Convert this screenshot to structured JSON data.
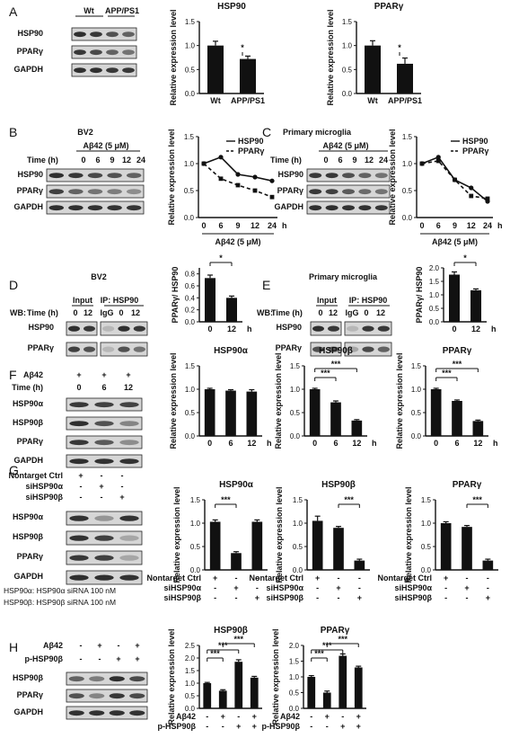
{
  "panels": {
    "A": {
      "letter": "A",
      "blot": {
        "groups": [
          "Wt",
          "APP/PS1"
        ],
        "rows": [
          "HSP90",
          "PPARγ",
          "GAPDH"
        ]
      },
      "charts": [
        {
          "title": "HSP90",
          "ylabel": "Relative expression level",
          "categories": [
            "Wt",
            "APP/PS1"
          ],
          "values": [
            1.0,
            0.72
          ],
          "errors": [
            0.09,
            0.06
          ],
          "yticks": [
            "0.0",
            "0.5",
            "1.0",
            "1.5"
          ],
          "ymax": 1.5,
          "sig": "*"
        },
        {
          "title": "PPARγ",
          "ylabel": "Relative expression level",
          "categories": [
            "Wt",
            "APP/PS1"
          ],
          "values": [
            1.0,
            0.62
          ],
          "errors": [
            0.1,
            0.12
          ],
          "yticks": [
            "0.0",
            "0.5",
            "1.0",
            "1.5"
          ],
          "ymax": 1.5,
          "sig": "*"
        }
      ]
    },
    "B": {
      "letter": "B",
      "cell": "BV2",
      "treatment": "Aβ42 (5 μM)",
      "time_label": "Time (h)",
      "times": [
        "0",
        "6",
        "9",
        "12",
        "24"
      ],
      "rows": [
        "HSP90",
        "PPARγ",
        "GAPDH"
      ],
      "chart": {
        "ylabel": "Relative expression level",
        "xlabel": "Aβ42 (5 μM)",
        "unit": "h",
        "x": [
          "0",
          "6",
          "9",
          "12",
          "24"
        ],
        "yticks": [
          "0.0",
          "0.5",
          "1.0",
          "1.5"
        ],
        "ymax": 1.5,
        "series": [
          {
            "name": "HSP90",
            "values": [
              1.0,
              1.12,
              0.8,
              0.75,
              0.68
            ]
          },
          {
            "name": "PPARγ",
            "values": [
              1.0,
              0.72,
              0.6,
              0.5,
              0.38
            ]
          }
        ]
      }
    },
    "C": {
      "letter": "C",
      "cell": "Primary microglia",
      "treatment": "Aβ42 (5 μM)",
      "time_label": "Time (h)",
      "times": [
        "0",
        "6",
        "9",
        "12",
        "24"
      ],
      "rows": [
        "HSP90",
        "PPARγ",
        "GAPDH"
      ],
      "chart": {
        "ylabel": "Relative expression level",
        "xlabel": "Aβ42 (5 μM)",
        "unit": "h",
        "x": [
          "0",
          "6",
          "9",
          "12",
          "24"
        ],
        "yticks": [
          "0.0",
          "0.5",
          "1.0",
          "1.5"
        ],
        "ymax": 1.5,
        "series": [
          {
            "name": "HSP90",
            "values": [
              1.0,
              1.12,
              0.7,
              0.55,
              0.3
            ]
          },
          {
            "name": "PPARγ",
            "values": [
              1.0,
              1.05,
              0.7,
              0.4,
              0.35
            ]
          }
        ]
      }
    },
    "D": {
      "letter": "D",
      "cell": "BV2",
      "wb": "WB:",
      "time_label": "Time (h)",
      "input": "Input",
      "ip": "IP: HSP90",
      "lanes": [
        "0",
        "12",
        "IgG",
        "0",
        "12"
      ],
      "rows": [
        "HSP90",
        "PPARγ"
      ],
      "chart": {
        "ylabel": "PPARγ/ HSP90",
        "categories": [
          "0",
          "12"
        ],
        "unit": "h",
        "values": [
          0.73,
          0.4
        ],
        "errors": [
          0.05,
          0.03
        ],
        "yticks": [
          "0.0",
          "0.2",
          "0.4",
          "0.6",
          "0.8"
        ],
        "ymax": 0.9,
        "sig": "*"
      }
    },
    "E": {
      "letter": "E",
      "cell": "Primary microglia",
      "wb": "WB:",
      "time_label": "Time (h)",
      "input": "Input",
      "ip": "IP: HSP90",
      "lanes": [
        "0",
        "12",
        "IgG",
        "0",
        "12"
      ],
      "rows": [
        "HSP90",
        "PPARγ"
      ],
      "chart": {
        "ylabel": "PPARγ/ HSP90",
        "categories": [
          "0",
          "12"
        ],
        "unit": "h",
        "values": [
          1.75,
          1.17
        ],
        "errors": [
          0.1,
          0.05
        ],
        "yticks": [
          "0.0",
          "0.5",
          "1.0",
          "1.5",
          "2.0"
        ],
        "ymax": 2.0,
        "sig": "*"
      }
    },
    "F": {
      "letter": "F",
      "treatment": "Aβ42",
      "time_label": "Time (h)",
      "plus": [
        "+",
        "+",
        "+"
      ],
      "times": [
        "0",
        "6",
        "12"
      ],
      "rows": [
        "HSP90α",
        "HSP90β",
        "PPARγ",
        "GAPDH"
      ],
      "charts": [
        {
          "title": "HSP90α",
          "ylabel": "Relative expression level",
          "categories": [
            "0",
            "6",
            "12"
          ],
          "unit": "h",
          "values": [
            1.0,
            0.97,
            0.95
          ],
          "errors": [
            0.02,
            0.02,
            0.04
          ],
          "yticks": [
            "0.0",
            "0.5",
            "1.0",
            "1.5"
          ],
          "ymax": 1.5,
          "sig": []
        },
        {
          "title": "HSP90β",
          "ylabel": "Relative expression level",
          "categories": [
            "0",
            "6",
            "12"
          ],
          "unit": "h",
          "values": [
            1.0,
            0.72,
            0.33
          ],
          "errors": [
            0.02,
            0.03,
            0.02
          ],
          "yticks": [
            "0.0",
            "0.5",
            "1.0",
            "1.5"
          ],
          "ymax": 1.5,
          "sig": [
            "***",
            "***"
          ]
        },
        {
          "title": "PPARγ",
          "ylabel": "Relative expression level",
          "categories": [
            "0",
            "6",
            "12"
          ],
          "unit": "h",
          "values": [
            1.0,
            0.75,
            0.32
          ],
          "errors": [
            0.02,
            0.02,
            0.02
          ],
          "yticks": [
            "0.0",
            "0.5",
            "1.0",
            "1.5"
          ],
          "ymax": 1.5,
          "sig": [
            "***",
            "***"
          ]
        }
      ]
    },
    "G": {
      "letter": "G",
      "conditions": [
        "Nontarget Ctrl",
        "siHSP90α",
        "siHSP90β"
      ],
      "pm": [
        [
          "+",
          "-",
          "-"
        ],
        [
          "-",
          "+",
          "-"
        ],
        [
          "-",
          "-",
          "+"
        ]
      ],
      "rows": [
        "HSP90α",
        "HSP90β",
        "PPARγ",
        "GAPDH"
      ],
      "notes": [
        "HSP90α: HSP90α siRNA 100 nM",
        "HSP90β: HSP90β siRNA 100 nM"
      ],
      "charts": [
        {
          "title": "HSP90α",
          "ylabel": "Relative expression level",
          "conditions": [
            "Nontarget Ctrl",
            "siHSP90α",
            "siHSP90β"
          ],
          "values": [
            1.03,
            0.36,
            1.03
          ],
          "errors": [
            0.04,
            0.03,
            0.04
          ],
          "yticks": [
            "0.0",
            "0.5",
            "1.0",
            "1.5"
          ],
          "ymax": 1.5,
          "sig": "***"
        },
        {
          "title": "HSP90β",
          "ylabel": "Relative expression level",
          "conditions": [
            "Nontarget Ctrl",
            "siHSP90α",
            "siHSP90β"
          ],
          "values": [
            1.05,
            0.9,
            0.2
          ],
          "errors": [
            0.1,
            0.03,
            0.03
          ],
          "yticks": [
            "0.0",
            "0.5",
            "1.0",
            "1.5"
          ],
          "ymax": 1.5,
          "sig": "***"
        },
        {
          "title": "PPARγ",
          "ylabel": "Relative expression level",
          "conditions": [
            "Nontarget Ctrl",
            "siHSP90α",
            "siHSP90β"
          ],
          "values": [
            1.0,
            0.92,
            0.2
          ],
          "errors": [
            0.03,
            0.03,
            0.03
          ],
          "yticks": [
            "0.0",
            "0.5",
            "1.0",
            "1.5"
          ],
          "ymax": 1.5,
          "sig": "***"
        }
      ]
    },
    "H": {
      "letter": "H",
      "conditions": [
        "Aβ42",
        "p-HSP90β"
      ],
      "pm": [
        [
          "-",
          "+",
          "-",
          "+"
        ],
        [
          "-",
          "-",
          "+",
          "+"
        ]
      ],
      "rows": [
        "HSP90β",
        "PPARγ",
        "GAPDH"
      ],
      "charts": [
        {
          "title": "HSP90β",
          "ylabel": "Relative expression level",
          "conditions": [
            "Aβ42",
            "p-HSP90β"
          ],
          "values": [
            1.0,
            0.7,
            1.85,
            1.22
          ],
          "errors": [
            0.03,
            0.04,
            0.08,
            0.05
          ],
          "yticks": [
            "0.0",
            "0.5",
            "1.0",
            "1.5",
            "2.0",
            "2.5"
          ],
          "ymax": 2.5,
          "sig": [
            "***",
            "***",
            "***"
          ]
        },
        {
          "title": "PPARγ",
          "ylabel": "Relative expression level",
          "conditions": [
            "Aβ42",
            "p-HSP90β"
          ],
          "values": [
            1.0,
            0.5,
            1.67,
            1.3
          ],
          "errors": [
            0.04,
            0.05,
            0.06,
            0.04
          ],
          "yticks": [
            "0.0",
            "0.5",
            "1.0",
            "1.5",
            "2.0"
          ],
          "ymax": 2.0,
          "sig": [
            "***",
            "***",
            "***"
          ]
        }
      ]
    }
  },
  "chart_data": [
    {
      "type": "bar",
      "title": "HSP90",
      "ylabel": "Relative expression level",
      "categories": [
        "Wt",
        "APP/PS1"
      ],
      "values": [
        1.0,
        0.72
      ],
      "ylim": [
        0,
        1.5
      ]
    },
    {
      "type": "bar",
      "title": "PPARγ",
      "ylabel": "Relative expression level",
      "categories": [
        "Wt",
        "APP/PS1"
      ],
      "values": [
        1.0,
        0.62
      ],
      "ylim": [
        0,
        1.5
      ]
    },
    {
      "type": "line",
      "ylabel": "Relative expression level",
      "xlabel": "Aβ42 (5 μM)",
      "x": [
        "0",
        "6",
        "9",
        "12",
        "24"
      ],
      "series": [
        {
          "name": "HSP90",
          "values": [
            1.0,
            1.12,
            0.8,
            0.75,
            0.68
          ]
        },
        {
          "name": "PPARγ",
          "values": [
            1.0,
            0.72,
            0.6,
            0.5,
            0.38
          ]
        }
      ],
      "ylim": [
        0,
        1.5
      ]
    },
    {
      "type": "line",
      "ylabel": "Relative expression level",
      "xlabel": "Aβ42 (5 μM)",
      "x": [
        "0",
        "6",
        "9",
        "12",
        "24"
      ],
      "series": [
        {
          "name": "HSP90",
          "values": [
            1.0,
            1.12,
            0.7,
            0.55,
            0.3
          ]
        },
        {
          "name": "PPARγ",
          "values": [
            1.0,
            1.05,
            0.7,
            0.4,
            0.35
          ]
        }
      ],
      "ylim": [
        0,
        1.5
      ]
    },
    {
      "type": "bar",
      "ylabel": "PPARγ/ HSP90",
      "categories": [
        "0",
        "12"
      ],
      "values": [
        0.73,
        0.4
      ],
      "ylim": [
        0,
        0.9
      ]
    },
    {
      "type": "bar",
      "ylabel": "PPARγ/ HSP90",
      "categories": [
        "0",
        "12"
      ],
      "values": [
        1.75,
        1.17
      ],
      "ylim": [
        0,
        2.0
      ]
    },
    {
      "type": "bar",
      "title": "HSP90α",
      "ylabel": "Relative expression level",
      "categories": [
        "0",
        "6",
        "12"
      ],
      "values": [
        1.0,
        0.97,
        0.95
      ],
      "ylim": [
        0,
        1.5
      ]
    },
    {
      "type": "bar",
      "title": "HSP90β",
      "ylabel": "Relative expression level",
      "categories": [
        "0",
        "6",
        "12"
      ],
      "values": [
        1.0,
        0.72,
        0.33
      ],
      "ylim": [
        0,
        1.5
      ]
    },
    {
      "type": "bar",
      "title": "PPARγ",
      "ylabel": "Relative expression level",
      "categories": [
        "0",
        "6",
        "12"
      ],
      "values": [
        1.0,
        0.75,
        0.32
      ],
      "ylim": [
        0,
        1.5
      ]
    },
    {
      "type": "bar",
      "title": "HSP90α",
      "ylabel": "Relative expression level",
      "values": [
        1.03,
        0.36,
        1.03
      ],
      "ylim": [
        0,
        1.5
      ]
    },
    {
      "type": "bar",
      "title": "HSP90β",
      "ylabel": "Relative expression level",
      "values": [
        1.05,
        0.9,
        0.2
      ],
      "ylim": [
        0,
        1.5
      ]
    },
    {
      "type": "bar",
      "title": "PPARγ",
      "ylabel": "Relative expression level",
      "values": [
        1.0,
        0.92,
        0.2
      ],
      "ylim": [
        0,
        1.5
      ]
    },
    {
      "type": "bar",
      "title": "HSP90β",
      "ylabel": "Relative expression level",
      "values": [
        1.0,
        0.7,
        1.85,
        1.22
      ],
      "ylim": [
        0,
        2.5
      ]
    },
    {
      "type": "bar",
      "title": "PPARγ",
      "ylabel": "Relative expression level",
      "values": [
        1.0,
        0.5,
        1.67,
        1.3
      ],
      "ylim": [
        0,
        2.0
      ]
    }
  ]
}
